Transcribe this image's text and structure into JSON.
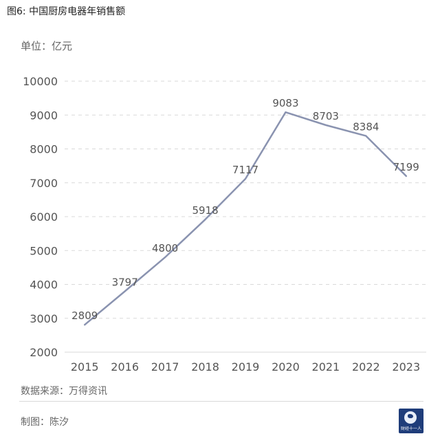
{
  "figure_caption": "图6: 中国厨房电器年销售额",
  "unit_label": "单位：亿元",
  "source_label": "数据来源：万得资讯",
  "maker_label": "制图：陈汐",
  "logo": {
    "icon": "globe-runner-logo-icon",
    "text": "财经十一人"
  },
  "colors": {
    "line": "#8a93b0",
    "grid": "#d9d9d9",
    "text": "#555555"
  },
  "chart_data": {
    "type": "line",
    "title": "",
    "xlabel": "",
    "ylabel": "",
    "categories": [
      "2015",
      "2016",
      "2017",
      "2018",
      "2019",
      "2020",
      "2021",
      "2022",
      "2023"
    ],
    "series": [
      {
        "values": [
          2809,
          3797,
          4800,
          5918,
          7117,
          9083,
          8703,
          8384,
          7199
        ],
        "labels": [
          "2809",
          "3797",
          "4800",
          "5918",
          "7117",
          "9083",
          "8703",
          "8384",
          "7199"
        ]
      }
    ],
    "ylim": [
      2000,
      10000
    ],
    "yticks": [
      2000,
      3000,
      4000,
      5000,
      6000,
      7000,
      8000,
      9000,
      10000
    ],
    "grid": "horizontal-dashed",
    "legend": "none"
  }
}
